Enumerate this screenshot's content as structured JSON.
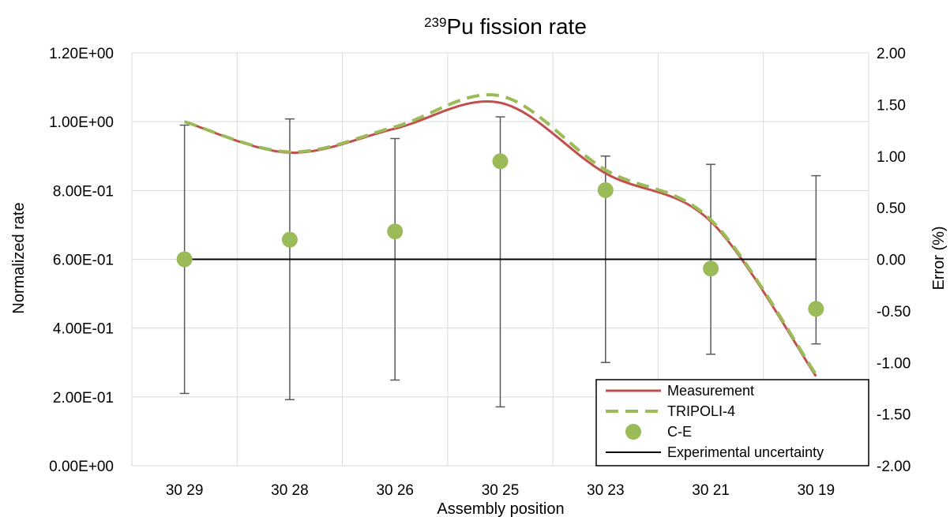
{
  "chart_data": {
    "type": "line",
    "title_super": "239",
    "title_main": "Pu fission rate",
    "xlabel": "Assembly position",
    "ylabel": "Normalized rate",
    "y2label": "Error (%)",
    "categories": [
      "30 29",
      "30 28",
      "30 26",
      "30 25",
      "30 23",
      "30 21",
      "30 19"
    ],
    "ylim": [
      0,
      1.2
    ],
    "y_ticks": [
      "0.00E+00",
      "2.00E-01",
      "4.00E-01",
      "6.00E-01",
      "8.00E-01",
      "1.00E+00",
      "1.20E+00"
    ],
    "y2lim": [
      -2,
      2
    ],
    "y2_ticks": [
      "-2.00",
      "-1.50",
      "-1.00",
      "-0.50",
      "0.00",
      "0.50",
      "1.00",
      "1.50",
      "2.00"
    ],
    "grid": true,
    "legend_position": "bottom-right",
    "series": [
      {
        "name": "Measurement",
        "axis": "left",
        "style": "smooth-line",
        "color": "#c0504d",
        "values": [
          1.0,
          0.91,
          0.98,
          1.055,
          0.85,
          0.71,
          0.26
        ]
      },
      {
        "name": "TRIPOLI-4",
        "axis": "left",
        "style": "smooth-dashed",
        "color": "#9bbb59",
        "values": [
          1.0,
          0.912,
          0.985,
          1.075,
          0.86,
          0.715,
          0.265
        ]
      },
      {
        "name": "C-E",
        "axis": "right",
        "style": "markers",
        "color": "#9bbb59",
        "values": [
          0.0,
          0.19,
          0.27,
          0.95,
          0.67,
          -0.09,
          -0.48
        ],
        "error_minus": [
          1.3,
          1.55,
          1.44,
          2.38,
          1.67,
          0.83,
          0.34
        ],
        "error_plus": [
          1.3,
          1.17,
          0.9,
          0.43,
          0.33,
          1.01,
          1.29
        ]
      },
      {
        "name": "Experimental uncertainty",
        "axis": "right",
        "style": "line",
        "color": "#000000",
        "values": [
          0,
          0,
          0,
          0,
          0,
          0,
          0
        ]
      }
    ]
  }
}
